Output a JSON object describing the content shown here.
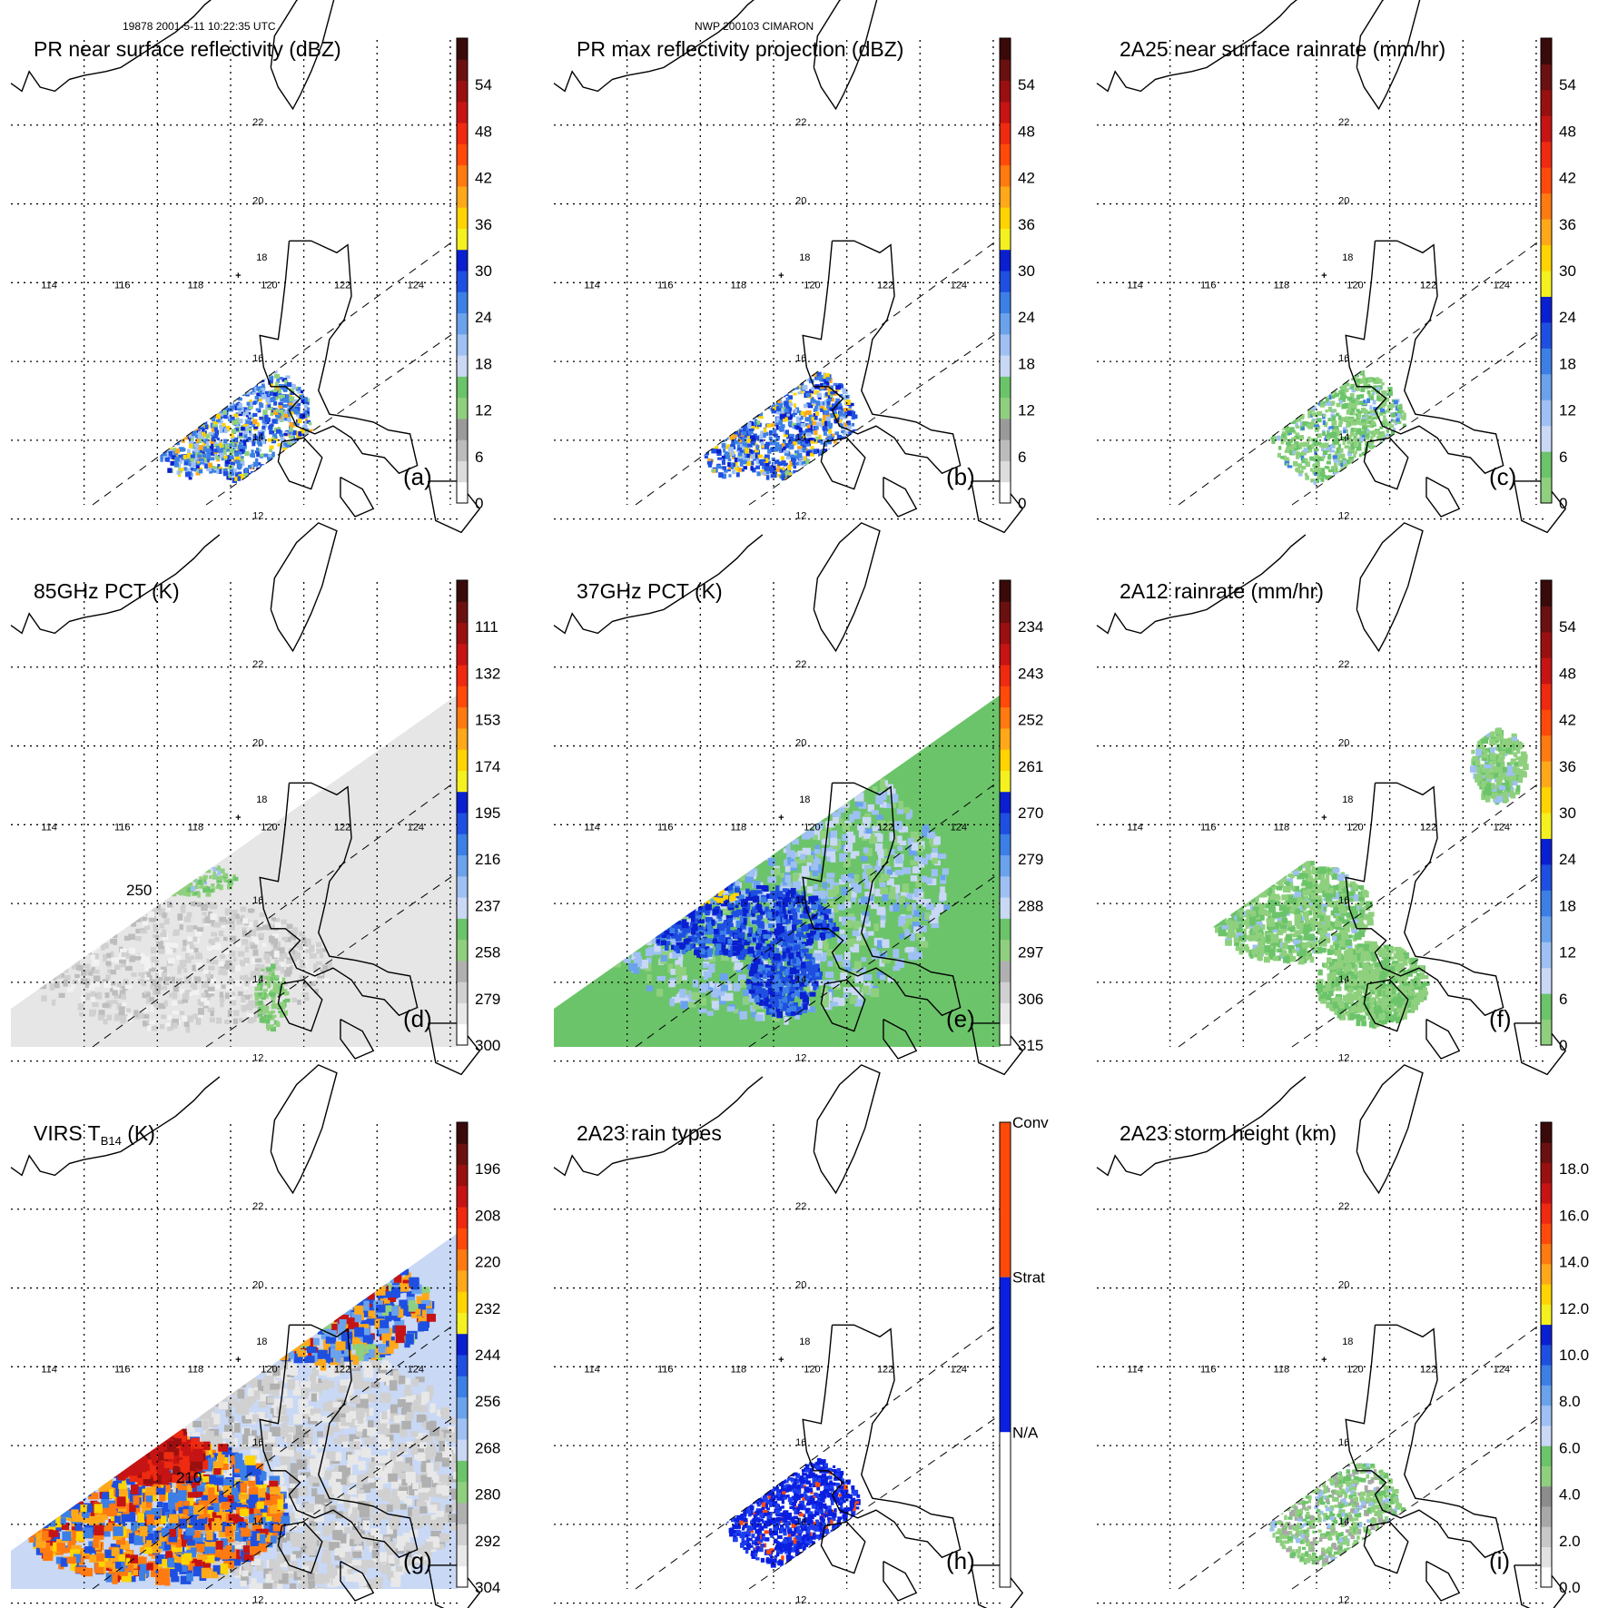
{
  "header": {
    "orbit_time": "19878 2001-5-11 10:22:35 UTC",
    "storm": "NWP 200103 CIMARON"
  },
  "chart_data": [
    {
      "id": "a",
      "type": "heatmap",
      "title": "PR near surface reflectivity (dBZ)",
      "letter": "(a)",
      "colorbar": {
        "ticks": [
          "0",
          "6",
          "12",
          "18",
          "24",
          "30",
          "36",
          "42",
          "48",
          "54"
        ],
        "kind": "reflectivity"
      },
      "features": [
        "pr_swath",
        "pr_echo"
      ]
    },
    {
      "id": "b",
      "type": "heatmap",
      "title": "PR max reflectivity projection (dBZ)",
      "letter": "(b)",
      "colorbar": {
        "ticks": [
          "0",
          "6",
          "12",
          "18",
          "24",
          "30",
          "36",
          "42",
          "48",
          "54"
        ],
        "kind": "reflectivity"
      },
      "features": [
        "pr_swath",
        "pr_echo_max"
      ]
    },
    {
      "id": "c",
      "type": "heatmap",
      "title": "2A25 near surface rainrate (mm/hr)",
      "letter": "(c)",
      "colorbar": {
        "ticks": [
          "0",
          "6",
          "12",
          "18",
          "24",
          "30",
          "36",
          "42",
          "48",
          "54"
        ],
        "kind": "rain"
      },
      "features": [
        "pr_swath",
        "pr_rain"
      ]
    },
    {
      "id": "d",
      "type": "heatmap",
      "title": "85GHz PCT (K)",
      "letter": "(d)",
      "colorbar": {
        "ticks": [
          "300",
          "279",
          "258",
          "237",
          "216",
          "195",
          "174",
          "153",
          "132",
          "111"
        ],
        "kind": "pct"
      },
      "contour_label": "250",
      "features": [
        "pr_swath",
        "tmi_swath_gray"
      ]
    },
    {
      "id": "e",
      "type": "heatmap",
      "title": "37GHz PCT (K)",
      "letter": "(e)",
      "colorbar": {
        "ticks": [
          "315",
          "306",
          "297",
          "288",
          "279",
          "270",
          "261",
          "252",
          "243",
          "234"
        ],
        "kind": "pct"
      },
      "features": [
        "pr_swath",
        "tmi_swath_37"
      ]
    },
    {
      "id": "f",
      "type": "heatmap",
      "title": "2A12 rainrate (mm/hr)",
      "letter": "(f)",
      "colorbar": {
        "ticks": [
          "0",
          "6",
          "12",
          "18",
          "24",
          "30",
          "36",
          "42",
          "48",
          "54"
        ],
        "kind": "rain"
      },
      "features": [
        "pr_swath",
        "tmi_rain"
      ]
    },
    {
      "id": "g",
      "type": "heatmap",
      "title": "VIRS T",
      "title_sub": "B14",
      "title_tail": " (K)",
      "letter": "(g)",
      "colorbar": {
        "ticks": [
          "304",
          "292",
          "280",
          "268",
          "256",
          "244",
          "232",
          "220",
          "208",
          "196"
        ],
        "kind": "ir"
      },
      "contour_label": "210",
      "features": [
        "virs_swath"
      ]
    },
    {
      "id": "h",
      "type": "heatmap",
      "title": "2A23 rain types",
      "letter": "(h)",
      "colorbar": {
        "ticks": [
          "N/A",
          "Strat",
          "Conv"
        ],
        "kind": "raintype"
      },
      "features": [
        "pr_swath",
        "pr_raintype"
      ]
    },
    {
      "id": "i",
      "type": "heatmap",
      "title": "2A23 storm height (km)",
      "letter": "(i)",
      "colorbar": {
        "ticks": [
          "0.0",
          "2.0",
          "4.0",
          "6.0",
          "8.0",
          "10.0",
          "12.0",
          "14.0",
          "16.0",
          "18.0"
        ],
        "kind": "height"
      },
      "features": [
        "pr_swath",
        "pr_height"
      ]
    }
  ],
  "map": {
    "lon_labels": [
      "114",
      "116",
      "118",
      "120",
      "122",
      "124"
    ],
    "lat_labels": [
      "12",
      "14",
      "16",
      "18",
      "20",
      "22"
    ],
    "marker": "+"
  }
}
